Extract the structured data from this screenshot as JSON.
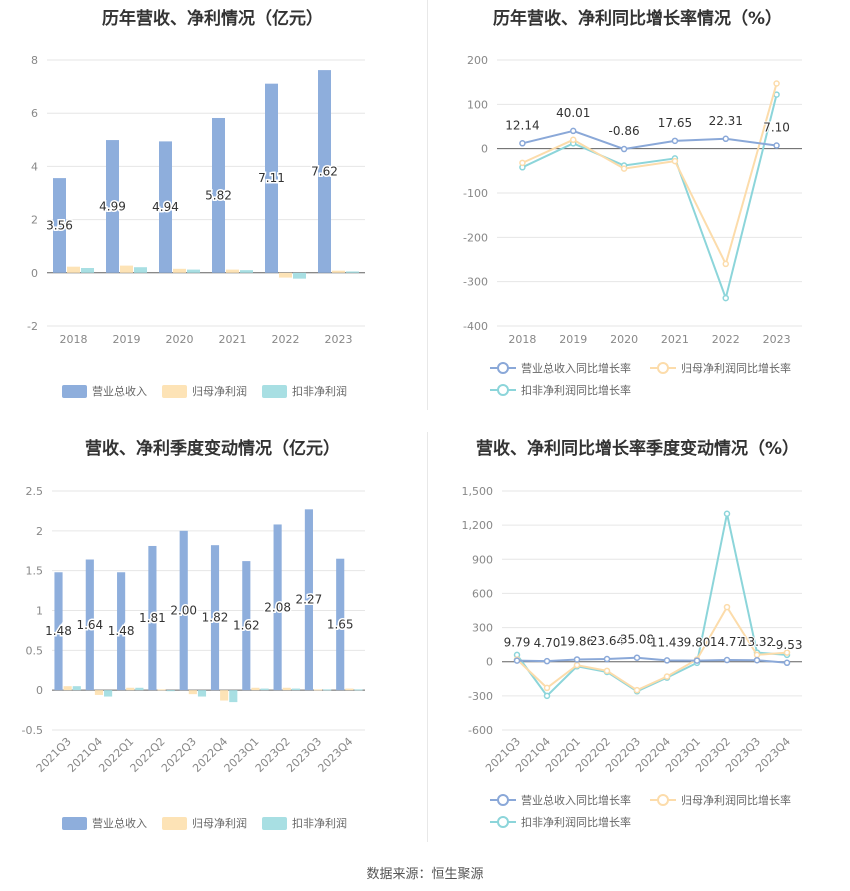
{
  "source": "数据来源：恒生聚源",
  "colors": {
    "revenue": "#8eaedc",
    "net_profit": "#fde3b6",
    "deducted": "#a8dfe3",
    "revenue_line": "#8aa8d8",
    "net_profit_line": "#fcdcab",
    "deducted_line": "#8cd5da"
  },
  "chart_data": [
    {
      "type": "bar",
      "title": "历年营收、净利情况（亿元）",
      "categories": [
        "2018",
        "2019",
        "2020",
        "2021",
        "2022",
        "2023"
      ],
      "ylim": [
        -2,
        8
      ],
      "yticks": [
        -2,
        0,
        2,
        4,
        6,
        8
      ],
      "ytick_labels": [
        "-2",
        "0",
        "2",
        "4",
        "6",
        "8"
      ],
      "grid": true,
      "legend": "bottom",
      "series": [
        {
          "name": "营业总收入",
          "values": [
            3.56,
            4.99,
            4.94,
            5.82,
            7.11,
            7.62
          ],
          "labels": [
            "3.56",
            "4.99",
            "4.94",
            "5.82",
            "7.11",
            "7.62"
          ]
        },
        {
          "name": "归母净利润",
          "values": [
            0.23,
            0.27,
            0.15,
            0.12,
            -0.18,
            0.08
          ]
        },
        {
          "name": "扣非净利润",
          "values": [
            0.18,
            0.21,
            0.12,
            0.1,
            -0.22,
            0.05
          ]
        }
      ]
    },
    {
      "type": "line",
      "title": "历年营收、净利同比增长率情况（%）",
      "categories": [
        "2018",
        "2019",
        "2020",
        "2021",
        "2022",
        "2023"
      ],
      "ylim": [
        -400,
        200
      ],
      "yticks": [
        -400,
        -300,
        -200,
        -100,
        0,
        100,
        200
      ],
      "ytick_labels": [
        "-400",
        "-300",
        "-200",
        "-100",
        "0",
        "100",
        "200"
      ],
      "grid": true,
      "legend": "bottom",
      "series": [
        {
          "name": "营业总收入同比增长率",
          "values": [
            12.14,
            40.01,
            -0.86,
            17.65,
            22.31,
            7.1
          ],
          "labels": [
            "12.14",
            "40.01",
            "-0.86",
            "17.65",
            "22.31",
            "7.10"
          ]
        },
        {
          "name": "归母净利润同比增长率",
          "values": [
            -32,
            20,
            -45,
            -28,
            -260,
            147
          ]
        },
        {
          "name": "扣非净利润同比增长率",
          "values": [
            -42,
            12,
            -38,
            -22,
            -337,
            122
          ]
        }
      ]
    },
    {
      "type": "bar",
      "title": "营收、净利季度变动情况（亿元）",
      "categories": [
        "2021Q3",
        "2021Q4",
        "2022Q1",
        "2022Q2",
        "2022Q3",
        "2022Q4",
        "2023Q1",
        "2023Q2",
        "2023Q3",
        "2023Q4"
      ],
      "ylim": [
        -0.5,
        2.5
      ],
      "yticks": [
        -0.5,
        0,
        0.5,
        1,
        1.5,
        2,
        2.5
      ],
      "ytick_labels": [
        "-0.5",
        "0",
        "0.5",
        "1",
        "1.5",
        "2",
        "2.5"
      ],
      "grid": true,
      "legend": "bottom",
      "series": [
        {
          "name": "营业总收入",
          "values": [
            1.48,
            1.64,
            1.48,
            1.81,
            2.0,
            1.82,
            1.62,
            2.08,
            2.27,
            1.65
          ],
          "labels": [
            "1.48",
            "1.64",
            "1.48",
            "1.81",
            "2.00",
            "1.82",
            "1.62",
            "2.08",
            "2.27",
            "1.65"
          ]
        },
        {
          "name": "归母净利润",
          "values": [
            0.05,
            -0.06,
            0.03,
            0.01,
            -0.05,
            -0.13,
            0.03,
            0.03,
            0.01,
            0.02
          ]
        },
        {
          "name": "扣非净利润",
          "values": [
            0.05,
            -0.08,
            0.03,
            0.0,
            -0.08,
            -0.15,
            0.02,
            0.02,
            0.01,
            0.01
          ]
        }
      ]
    },
    {
      "type": "line",
      "title": "营收、净利同比增长率季度变动情况（%）",
      "categories": [
        "2021Q3",
        "2021Q4",
        "2022Q1",
        "2022Q2",
        "2022Q3",
        "2022Q4",
        "2023Q1",
        "2023Q2",
        "2023Q3",
        "2023Q4"
      ],
      "ylim": [
        -600,
        1500
      ],
      "yticks": [
        -600,
        -300,
        0,
        300,
        600,
        900,
        1200,
        1500
      ],
      "ytick_labels": [
        "-600",
        "-300",
        "0",
        "300",
        "600",
        "900",
        "1,200",
        "1,500"
      ],
      "grid": true,
      "legend": "bottom",
      "series": [
        {
          "name": "营业总收入同比增长率",
          "values": [
            9.79,
            4.7,
            19.86,
            23.64,
            35.08,
            11.43,
            9.8,
            14.77,
            13.32,
            -9.53
          ],
          "labels": [
            "9.79",
            "4.70",
            "19.86",
            "23.64",
            "35.08",
            "11.43",
            "9.80",
            "14.77",
            "13.32",
            "-9.53"
          ]
        },
        {
          "name": "归母净利润同比增长率",
          "values": [
            20,
            -230,
            -30,
            -80,
            -250,
            -130,
            20,
            480,
            60,
            80
          ]
        },
        {
          "name": "扣非净利润同比增长率",
          "values": [
            60,
            -300,
            -40,
            -90,
            -260,
            -140,
            -10,
            1300,
            80,
            60
          ]
        }
      ]
    }
  ]
}
